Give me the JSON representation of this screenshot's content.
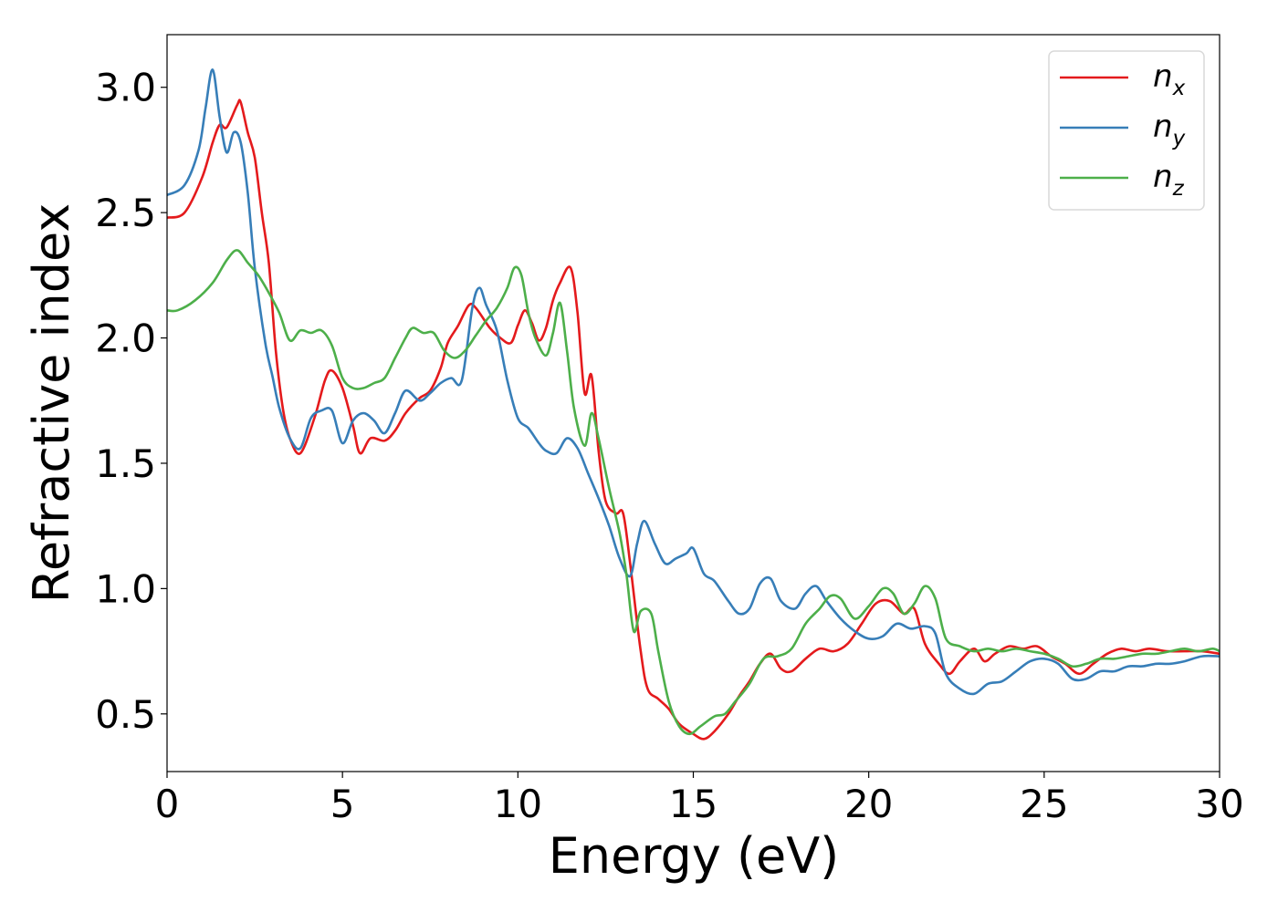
{
  "chart_data": {
    "type": "line",
    "title": "",
    "xlabel": "Energy (eV)",
    "ylabel": "Refractive index",
    "xlim": [
      0,
      30
    ],
    "ylim": [
      0.27,
      3.21
    ],
    "xticks": [
      0,
      5,
      10,
      15,
      20,
      25,
      30
    ],
    "yticks": [
      0.5,
      1.0,
      1.5,
      2.0,
      2.5,
      3.0
    ],
    "xtick_labels": [
      "0",
      "5",
      "10",
      "15",
      "20",
      "25",
      "30"
    ],
    "ytick_labels": [
      "0.5",
      "1.0",
      "1.5",
      "2.0",
      "2.5",
      "3.0"
    ],
    "grid": false,
    "legend_position": "top-right",
    "series": [
      {
        "name": "n_x",
        "label_main": "n",
        "label_sub": "x",
        "color": "#e41a1c",
        "points": [
          [
            0,
            2.48
          ],
          [
            0.5,
            2.5
          ],
          [
            1.0,
            2.64
          ],
          [
            1.3,
            2.78
          ],
          [
            1.5,
            2.85
          ],
          [
            1.7,
            2.84
          ],
          [
            2.0,
            2.93
          ],
          [
            2.1,
            2.94
          ],
          [
            2.3,
            2.82
          ],
          [
            2.5,
            2.72
          ],
          [
            2.7,
            2.5
          ],
          [
            2.9,
            2.3
          ],
          [
            3.1,
            1.95
          ],
          [
            3.3,
            1.72
          ],
          [
            3.5,
            1.6
          ],
          [
            3.8,
            1.54
          ],
          [
            4.2,
            1.68
          ],
          [
            4.5,
            1.83
          ],
          [
            4.7,
            1.87
          ],
          [
            5.0,
            1.8
          ],
          [
            5.3,
            1.65
          ],
          [
            5.5,
            1.54
          ],
          [
            5.8,
            1.6
          ],
          [
            6.2,
            1.59
          ],
          [
            6.5,
            1.63
          ],
          [
            6.8,
            1.7
          ],
          [
            7.2,
            1.76
          ],
          [
            7.5,
            1.79
          ],
          [
            7.8,
            1.88
          ],
          [
            8.0,
            1.98
          ],
          [
            8.3,
            2.05
          ],
          [
            8.6,
            2.13
          ],
          [
            8.8,
            2.12
          ],
          [
            9.2,
            2.04
          ],
          [
            9.5,
            2.0
          ],
          [
            9.8,
            1.98
          ],
          [
            10.0,
            2.05
          ],
          [
            10.2,
            2.11
          ],
          [
            10.4,
            2.06
          ],
          [
            10.6,
            1.99
          ],
          [
            10.8,
            2.04
          ],
          [
            11.0,
            2.15
          ],
          [
            11.2,
            2.22
          ],
          [
            11.5,
            2.28
          ],
          [
            11.7,
            2.1
          ],
          [
            11.9,
            1.78
          ],
          [
            12.1,
            1.85
          ],
          [
            12.3,
            1.55
          ],
          [
            12.5,
            1.35
          ],
          [
            12.8,
            1.3
          ],
          [
            13.0,
            1.3
          ],
          [
            13.2,
            1.1
          ],
          [
            13.5,
            0.75
          ],
          [
            13.7,
            0.6
          ],
          [
            14.0,
            0.56
          ],
          [
            14.3,
            0.52
          ],
          [
            14.6,
            0.46
          ],
          [
            15.0,
            0.42
          ],
          [
            15.3,
            0.4
          ],
          [
            15.6,
            0.43
          ],
          [
            16.0,
            0.5
          ],
          [
            16.3,
            0.57
          ],
          [
            16.6,
            0.63
          ],
          [
            16.9,
            0.7
          ],
          [
            17.2,
            0.74
          ],
          [
            17.5,
            0.68
          ],
          [
            17.8,
            0.67
          ],
          [
            18.2,
            0.72
          ],
          [
            18.6,
            0.76
          ],
          [
            19.0,
            0.75
          ],
          [
            19.4,
            0.78
          ],
          [
            19.8,
            0.86
          ],
          [
            20.2,
            0.94
          ],
          [
            20.6,
            0.95
          ],
          [
            21.0,
            0.9
          ],
          [
            21.3,
            0.92
          ],
          [
            21.6,
            0.78
          ],
          [
            22.0,
            0.7
          ],
          [
            22.3,
            0.66
          ],
          [
            22.6,
            0.71
          ],
          [
            23.0,
            0.76
          ],
          [
            23.3,
            0.71
          ],
          [
            23.6,
            0.74
          ],
          [
            24.0,
            0.77
          ],
          [
            24.4,
            0.76
          ],
          [
            24.8,
            0.77
          ],
          [
            25.2,
            0.73
          ],
          [
            25.6,
            0.7
          ],
          [
            26.0,
            0.66
          ],
          [
            26.4,
            0.7
          ],
          [
            26.8,
            0.74
          ],
          [
            27.2,
            0.76
          ],
          [
            27.6,
            0.75
          ],
          [
            28.0,
            0.76
          ],
          [
            28.5,
            0.75
          ],
          [
            29.0,
            0.75
          ],
          [
            29.5,
            0.75
          ],
          [
            30.0,
            0.74
          ]
        ]
      },
      {
        "name": "n_y",
        "label_main": "n",
        "label_sub": "y",
        "color": "#377eb8",
        "points": [
          [
            0,
            2.57
          ],
          [
            0.5,
            2.61
          ],
          [
            0.9,
            2.75
          ],
          [
            1.1,
            2.92
          ],
          [
            1.3,
            3.07
          ],
          [
            1.5,
            2.88
          ],
          [
            1.7,
            2.74
          ],
          [
            1.9,
            2.82
          ],
          [
            2.1,
            2.78
          ],
          [
            2.3,
            2.58
          ],
          [
            2.5,
            2.28
          ],
          [
            2.8,
            1.98
          ],
          [
            3.0,
            1.85
          ],
          [
            3.2,
            1.72
          ],
          [
            3.5,
            1.6
          ],
          [
            3.8,
            1.56
          ],
          [
            4.1,
            1.68
          ],
          [
            4.4,
            1.71
          ],
          [
            4.7,
            1.71
          ],
          [
            5.0,
            1.58
          ],
          [
            5.3,
            1.67
          ],
          [
            5.6,
            1.7
          ],
          [
            5.9,
            1.67
          ],
          [
            6.2,
            1.62
          ],
          [
            6.5,
            1.7
          ],
          [
            6.8,
            1.79
          ],
          [
            7.2,
            1.75
          ],
          [
            7.5,
            1.78
          ],
          [
            7.8,
            1.82
          ],
          [
            8.1,
            1.84
          ],
          [
            8.4,
            1.83
          ],
          [
            8.7,
            2.12
          ],
          [
            8.9,
            2.2
          ],
          [
            9.1,
            2.13
          ],
          [
            9.4,
            2.03
          ],
          [
            9.7,
            1.83
          ],
          [
            10.0,
            1.68
          ],
          [
            10.3,
            1.64
          ],
          [
            10.6,
            1.58
          ],
          [
            10.8,
            1.55
          ],
          [
            11.1,
            1.54
          ],
          [
            11.4,
            1.6
          ],
          [
            11.7,
            1.56
          ],
          [
            12.0,
            1.46
          ],
          [
            12.3,
            1.36
          ],
          [
            12.6,
            1.25
          ],
          [
            12.9,
            1.12
          ],
          [
            13.2,
            1.05
          ],
          [
            13.4,
            1.18
          ],
          [
            13.6,
            1.27
          ],
          [
            13.9,
            1.18
          ],
          [
            14.2,
            1.1
          ],
          [
            14.5,
            1.12
          ],
          [
            14.8,
            1.14
          ],
          [
            15.0,
            1.16
          ],
          [
            15.3,
            1.06
          ],
          [
            15.6,
            1.03
          ],
          [
            16.0,
            0.95
          ],
          [
            16.3,
            0.9
          ],
          [
            16.6,
            0.92
          ],
          [
            16.9,
            1.02
          ],
          [
            17.2,
            1.04
          ],
          [
            17.5,
            0.95
          ],
          [
            17.9,
            0.92
          ],
          [
            18.2,
            0.98
          ],
          [
            18.5,
            1.01
          ],
          [
            18.8,
            0.95
          ],
          [
            19.2,
            0.88
          ],
          [
            19.6,
            0.83
          ],
          [
            20.0,
            0.8
          ],
          [
            20.4,
            0.81
          ],
          [
            20.8,
            0.86
          ],
          [
            21.2,
            0.84
          ],
          [
            21.6,
            0.85
          ],
          [
            21.9,
            0.82
          ],
          [
            22.2,
            0.66
          ],
          [
            22.6,
            0.6
          ],
          [
            23.0,
            0.58
          ],
          [
            23.4,
            0.62
          ],
          [
            23.8,
            0.63
          ],
          [
            24.2,
            0.67
          ],
          [
            24.6,
            0.71
          ],
          [
            25.0,
            0.72
          ],
          [
            25.4,
            0.7
          ],
          [
            25.8,
            0.64
          ],
          [
            26.2,
            0.64
          ],
          [
            26.6,
            0.67
          ],
          [
            27.0,
            0.67
          ],
          [
            27.4,
            0.69
          ],
          [
            27.8,
            0.69
          ],
          [
            28.2,
            0.7
          ],
          [
            28.6,
            0.7
          ],
          [
            29.0,
            0.71
          ],
          [
            29.5,
            0.73
          ],
          [
            30.0,
            0.73
          ]
        ]
      },
      {
        "name": "n_z",
        "label_main": "n",
        "label_sub": "z",
        "color": "#4daf4a",
        "points": [
          [
            0,
            2.11
          ],
          [
            0.3,
            2.11
          ],
          [
            0.8,
            2.15
          ],
          [
            1.3,
            2.22
          ],
          [
            1.7,
            2.31
          ],
          [
            2.0,
            2.35
          ],
          [
            2.3,
            2.3
          ],
          [
            2.6,
            2.25
          ],
          [
            2.9,
            2.18
          ],
          [
            3.2,
            2.1
          ],
          [
            3.5,
            1.99
          ],
          [
            3.8,
            2.03
          ],
          [
            4.1,
            2.02
          ],
          [
            4.4,
            2.03
          ],
          [
            4.7,
            1.97
          ],
          [
            5.0,
            1.84
          ],
          [
            5.3,
            1.8
          ],
          [
            5.6,
            1.8
          ],
          [
            5.9,
            1.82
          ],
          [
            6.2,
            1.84
          ],
          [
            6.5,
            1.92
          ],
          [
            6.8,
            2.0
          ],
          [
            7.0,
            2.04
          ],
          [
            7.3,
            2.02
          ],
          [
            7.6,
            2.02
          ],
          [
            7.9,
            1.95
          ],
          [
            8.2,
            1.92
          ],
          [
            8.5,
            1.95
          ],
          [
            8.8,
            2.01
          ],
          [
            9.1,
            2.07
          ],
          [
            9.4,
            2.12
          ],
          [
            9.7,
            2.2
          ],
          [
            9.9,
            2.28
          ],
          [
            10.1,
            2.25
          ],
          [
            10.3,
            2.1
          ],
          [
            10.5,
            2.0
          ],
          [
            10.8,
            1.93
          ],
          [
            11.0,
            2.02
          ],
          [
            11.2,
            2.14
          ],
          [
            11.4,
            1.95
          ],
          [
            11.6,
            1.72
          ],
          [
            11.9,
            1.57
          ],
          [
            12.1,
            1.7
          ],
          [
            12.3,
            1.6
          ],
          [
            12.6,
            1.4
          ],
          [
            12.9,
            1.22
          ],
          [
            13.1,
            1.05
          ],
          [
            13.3,
            0.83
          ],
          [
            13.5,
            0.91
          ],
          [
            13.8,
            0.9
          ],
          [
            14.0,
            0.75
          ],
          [
            14.3,
            0.55
          ],
          [
            14.6,
            0.45
          ],
          [
            14.9,
            0.42
          ],
          [
            15.2,
            0.45
          ],
          [
            15.6,
            0.49
          ],
          [
            15.9,
            0.5
          ],
          [
            16.2,
            0.55
          ],
          [
            16.6,
            0.62
          ],
          [
            17.0,
            0.72
          ],
          [
            17.4,
            0.73
          ],
          [
            17.8,
            0.76
          ],
          [
            18.2,
            0.86
          ],
          [
            18.6,
            0.92
          ],
          [
            18.9,
            0.97
          ],
          [
            19.2,
            0.96
          ],
          [
            19.6,
            0.88
          ],
          [
            20.0,
            0.93
          ],
          [
            20.4,
            1.0
          ],
          [
            20.7,
            0.98
          ],
          [
            21.0,
            0.9
          ],
          [
            21.3,
            0.94
          ],
          [
            21.6,
            1.01
          ],
          [
            21.9,
            0.96
          ],
          [
            22.2,
            0.8
          ],
          [
            22.6,
            0.77
          ],
          [
            23.0,
            0.75
          ],
          [
            23.4,
            0.76
          ],
          [
            23.8,
            0.75
          ],
          [
            24.2,
            0.76
          ],
          [
            24.6,
            0.75
          ],
          [
            25.0,
            0.74
          ],
          [
            25.4,
            0.72
          ],
          [
            25.8,
            0.69
          ],
          [
            26.2,
            0.7
          ],
          [
            26.6,
            0.72
          ],
          [
            27.0,
            0.72
          ],
          [
            27.4,
            0.73
          ],
          [
            27.8,
            0.74
          ],
          [
            28.2,
            0.74
          ],
          [
            28.6,
            0.75
          ],
          [
            29.0,
            0.76
          ],
          [
            29.4,
            0.75
          ],
          [
            29.8,
            0.76
          ],
          [
            30.0,
            0.75
          ]
        ]
      }
    ]
  }
}
